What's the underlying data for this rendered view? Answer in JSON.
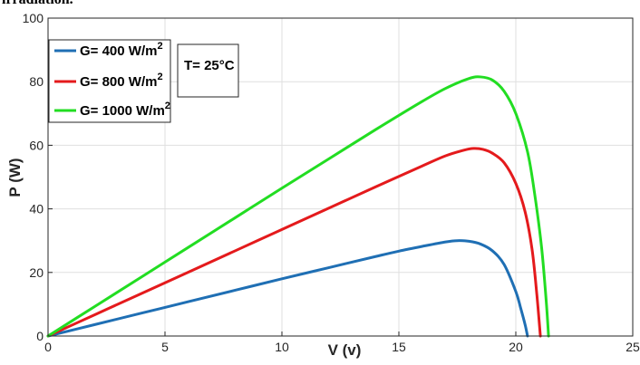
{
  "caption_fragment": "irradiation.",
  "chart_data": {
    "type": "line",
    "title": "",
    "xlabel": "V (v)",
    "ylabel": "P  (W)",
    "xlim": [
      0,
      25
    ],
    "ylim": [
      0,
      100
    ],
    "xticks": [
      0,
      5,
      10,
      15,
      20,
      25
    ],
    "yticks": [
      0,
      20,
      40,
      60,
      80,
      100
    ],
    "grid": true,
    "legend_position": "top-left",
    "annotation": "T= 25°C",
    "series": [
      {
        "name": "G= 400 W/m",
        "superscript": "2",
        "color": "#1f6fb4",
        "x": [
          0,
          2,
          4,
          6,
          8,
          10,
          12,
          14,
          15,
          16,
          17,
          17.5,
          18,
          18.5,
          19,
          19.5,
          20,
          20.2,
          20.4,
          20.5
        ],
        "y": [
          0,
          3.6,
          7.2,
          10.8,
          14.4,
          18,
          21.5,
          25,
          26.7,
          28.2,
          29.6,
          30,
          29.8,
          28.9,
          26.8,
          22.5,
          14,
          9,
          3.5,
          0
        ]
      },
      {
        "name": "G= 800 W/m",
        "superscript": "2",
        "color": "#e41a1c",
        "x": [
          0,
          2,
          4,
          6,
          8,
          10,
          12,
          14,
          16,
          17,
          17.8,
          18.2,
          18.6,
          19,
          19.5,
          20,
          20.4,
          20.7,
          20.9,
          21.05
        ],
        "y": [
          0,
          6.7,
          13.4,
          20.1,
          26.8,
          33.5,
          40.2,
          46.9,
          53.5,
          56.7,
          58.5,
          59,
          58.7,
          57.5,
          54.5,
          48,
          39,
          27,
          13,
          0
        ]
      },
      {
        "name": "G= 1000 W/m",
        "superscript": "2",
        "color": "#22dd22",
        "x": [
          0,
          2,
          4,
          6,
          8,
          10,
          12,
          14,
          16,
          17,
          18,
          18.5,
          19,
          19.5,
          20,
          20.5,
          20.8,
          21.1,
          21.3,
          21.4
        ],
        "y": [
          0,
          9.3,
          18.6,
          27.9,
          37.2,
          46.5,
          55.7,
          64.9,
          73.8,
          77.9,
          81,
          81.5,
          80.5,
          77,
          70,
          58,
          45,
          28,
          11,
          0
        ]
      }
    ]
  }
}
